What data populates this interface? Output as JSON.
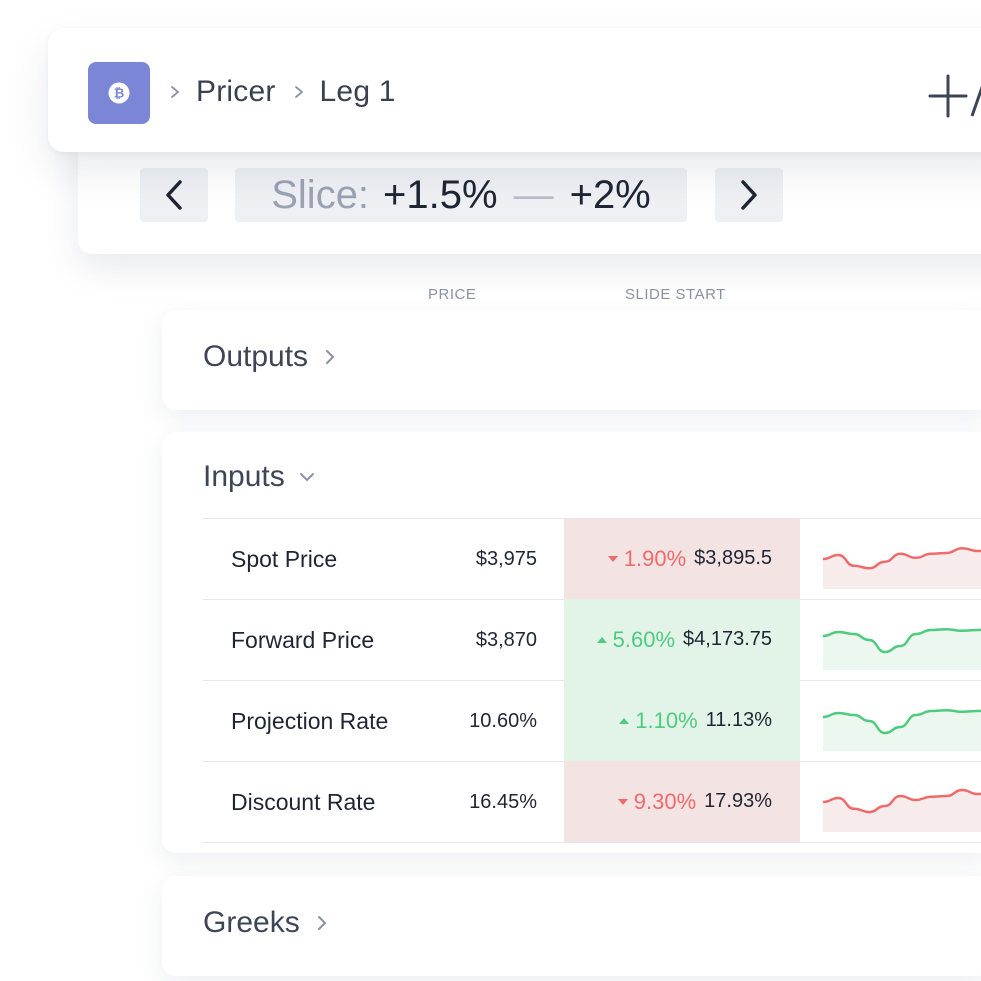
{
  "header": {
    "breadcrumbs": [
      "Pricer",
      "Leg 1"
    ],
    "logo_icon": "bitcoin-icon",
    "add_icon": "plus-icon",
    "accent_color": "#7b86d6"
  },
  "slice": {
    "label": "Slice:",
    "from": "+1.5%",
    "separator": "—",
    "to": "+2%"
  },
  "columns": {
    "price": "PRICE",
    "slide_start": "SLIDE START"
  },
  "sections": {
    "outputs": "Outputs",
    "inputs": "Inputs",
    "greeks": "Greeks"
  },
  "inputs": [
    {
      "label": "Spot Price",
      "price": "$3,975",
      "direction": "down",
      "pct": "1.90%",
      "slide": "$3,895.5",
      "trend": [
        0.55,
        0.45,
        0.72,
        0.78,
        0.62,
        0.42,
        0.52,
        0.42,
        0.4,
        0.28,
        0.35,
        0.35
      ]
    },
    {
      "label": "Forward Price",
      "price": "$3,870",
      "direction": "up",
      "pct": "5.60%",
      "slide": "$4,173.75",
      "trend": [
        0.45,
        0.35,
        0.4,
        0.55,
        0.85,
        0.7,
        0.4,
        0.3,
        0.28,
        0.32,
        0.3,
        0.28
      ]
    },
    {
      "label": "Projection Rate",
      "price": "10.60%",
      "direction": "up",
      "pct": "1.10%",
      "slide": "11.13%",
      "trend": [
        0.45,
        0.35,
        0.4,
        0.55,
        0.85,
        0.7,
        0.4,
        0.3,
        0.28,
        0.32,
        0.3,
        0.28
      ]
    },
    {
      "label": "Discount Rate",
      "price": "16.45%",
      "direction": "down",
      "pct": "9.30%",
      "slide": "17.93%",
      "trend": [
        0.55,
        0.45,
        0.72,
        0.8,
        0.65,
        0.4,
        0.5,
        0.42,
        0.4,
        0.25,
        0.35,
        0.32
      ]
    }
  ],
  "colors": {
    "down": "#ee6b6b",
    "up": "#4ecb7f",
    "down_bg": "#f4e3e3",
    "up_bg": "#e2f4e8"
  }
}
